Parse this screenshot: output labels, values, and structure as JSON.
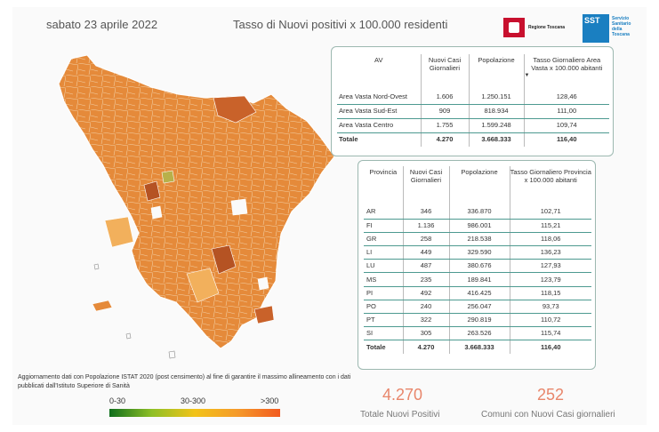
{
  "header": {
    "date": "sabato 23 aprile 2022",
    "title": "Tasso di Nuovi positivi x 100.000 residenti",
    "logo_regione": "Regione Toscana",
    "logo_sst_mark": "SST",
    "logo_sst_text": "Servizio Sanitario della Toscana"
  },
  "av_table": {
    "headers": [
      "AV",
      "Nuovi Casi Giornalieri",
      "Popolazione",
      "Tasso Giornaliero Area Vasta x 100.000 abitanti"
    ],
    "rows": [
      [
        "Area Vasta Nord-Ovest",
        "1.606",
        "1.250.151",
        "128,46"
      ],
      [
        "Area Vasta Sud-Est",
        "909",
        "818.934",
        "111,00"
      ],
      [
        "Area Vasta Centro",
        "1.755",
        "1.599.248",
        "109,74"
      ]
    ],
    "total": [
      "Totale",
      "4.270",
      "3.668.333",
      "116,40"
    ]
  },
  "prov_table": {
    "headers": [
      "Provincia",
      "Nuovi Casi Giornalieri",
      "Popolazione",
      "Tasso Giornaliero Provincia x 100.000 abitanti"
    ],
    "rows": [
      [
        "AR",
        "346",
        "336.870",
        "102,71"
      ],
      [
        "FI",
        "1.136",
        "986.001",
        "115,21"
      ],
      [
        "GR",
        "258",
        "218.538",
        "118,06"
      ],
      [
        "LI",
        "449",
        "329.590",
        "136,23"
      ],
      [
        "LU",
        "487",
        "380.676",
        "127,93"
      ],
      [
        "MS",
        "235",
        "189.841",
        "123,79"
      ],
      [
        "PI",
        "492",
        "416.425",
        "118,15"
      ],
      [
        "PO",
        "240",
        "256.047",
        "93,73"
      ],
      [
        "PT",
        "322",
        "290.819",
        "110,72"
      ],
      [
        "SI",
        "305",
        "263.526",
        "115,74"
      ]
    ],
    "total": [
      "Totale",
      "4.270",
      "3.668.333",
      "116,40"
    ]
  },
  "note": "Aggiornamento dati con Popolazione ISTAT 2020 (post censimento) al fine di garantire il massimo allineamento con i dati pubblicati dall'Istituto Superiore di Sanità",
  "legend": {
    "labels": [
      "0-30",
      "30-300",
      ">300"
    ]
  },
  "kpi": {
    "positivi_value": "4.270",
    "positivi_label": "Totale Nuovi Positivi",
    "comuni_value": "252",
    "comuni_label": "Comuni con Nuovi Casi giornalieri"
  },
  "colors": {
    "accent": "#e8866b",
    "table_border": "#4d9a90",
    "map_fill_main": "#e58a3a",
    "map_fill_dark": "#c9622a",
    "map_fill_light": "#f2b05c"
  }
}
